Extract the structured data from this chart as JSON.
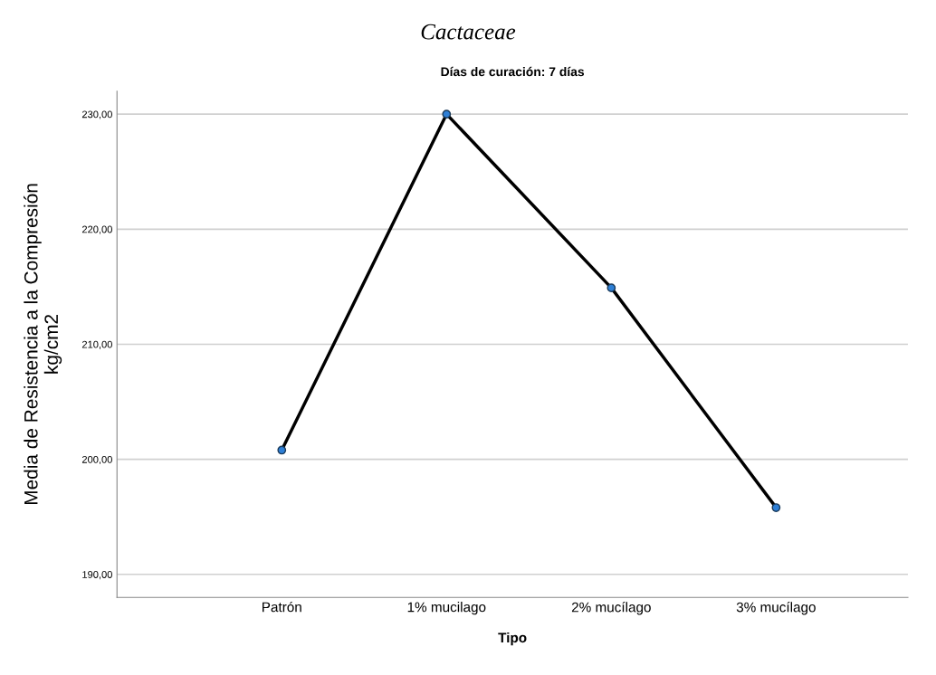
{
  "chart_data": {
    "type": "line",
    "title": "Cactaceae",
    "subtitle": "Días de curación: 7 días",
    "xlabel": "Tipo",
    "ylabel": "Media de Resistencia a la Compresión\nkg/cm2",
    "categories": [
      "Patrón",
      "1% mucilago",
      "2% mucílago",
      "3% mucílago"
    ],
    "series": [
      {
        "color": "#000000",
        "values": [
          200.8,
          230.0,
          214.9,
          195.8
        ]
      }
    ],
    "ylim": [
      188,
      232
    ],
    "yticks": [
      {
        "value": 190,
        "label": "190,00"
      },
      {
        "value": 200,
        "label": "200,00"
      },
      {
        "value": 210,
        "label": "210,00"
      },
      {
        "value": 220,
        "label": "220,00"
      },
      {
        "value": 230,
        "label": "230,00"
      }
    ],
    "grid": "y",
    "marker": "circle",
    "line_style": "solid"
  }
}
